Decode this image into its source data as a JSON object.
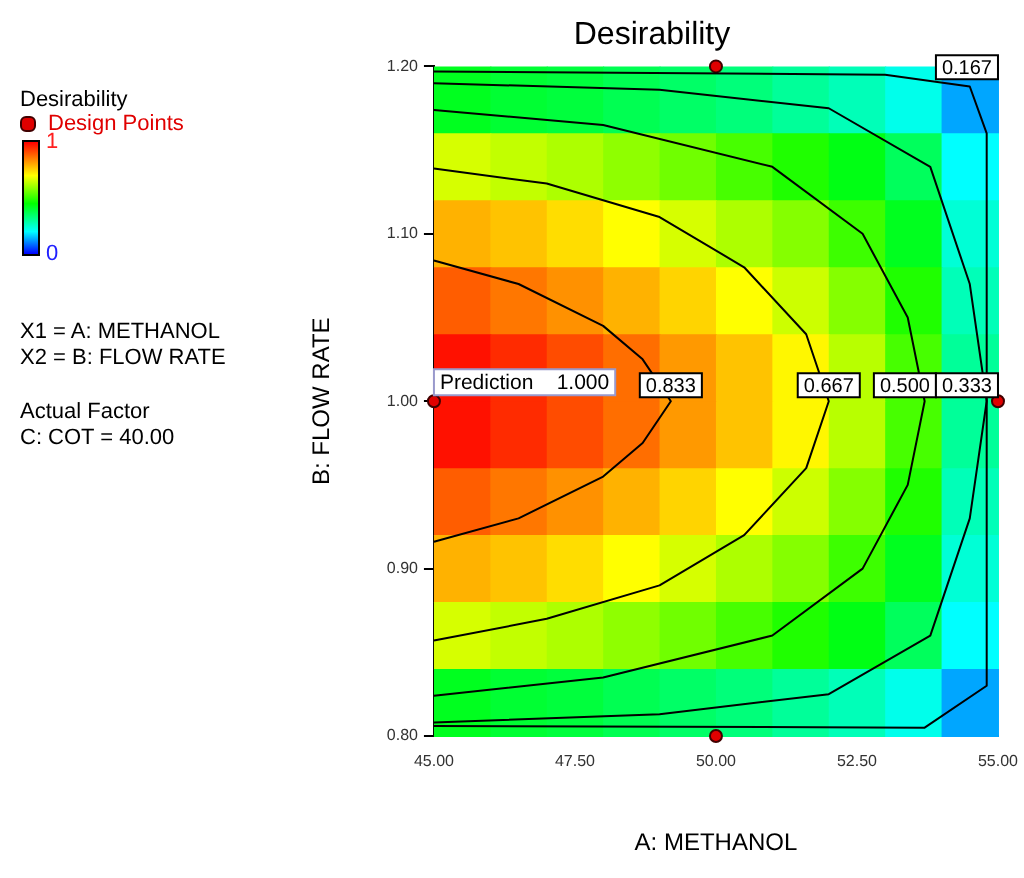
{
  "chart_data": {
    "type": "heatmap",
    "title": "Desirability",
    "xlabel": "A: METHANOL",
    "ylabel": "B: FLOW RATE",
    "legend_title": "Desirability",
    "legend": "left",
    "xlim": [
      45,
      55
    ],
    "xticks": [
      {
        "value": 45,
        "label": "45.00"
      },
      {
        "value": 47.5,
        "label": "47.50"
      },
      {
        "value": 50,
        "label": "50.00"
      },
      {
        "value": 52.5,
        "label": "52.50"
      },
      {
        "value": 55,
        "label": "55.00"
      }
    ],
    "ylim": [
      0.8,
      1.2
    ],
    "yticks": [
      {
        "value": 0.8,
        "label": "0.80"
      },
      {
        "value": 0.9,
        "label": "0.90"
      },
      {
        "value": 1.0,
        "label": "1.00"
      },
      {
        "value": 1.1,
        "label": "1.10"
      },
      {
        "value": 1.2,
        "label": "1.20"
      }
    ],
    "clim": [
      0,
      1
    ],
    "cticks": [
      0,
      1
    ],
    "cells": [
      [
        0.42,
        0.4,
        0.39,
        0.37,
        0.35,
        0.33,
        0.3,
        0.27,
        0.22,
        0.13
      ],
      [
        0.66,
        0.64,
        0.62,
        0.59,
        0.56,
        0.52,
        0.48,
        0.43,
        0.36,
        0.2
      ],
      [
        0.79,
        0.77,
        0.74,
        0.7,
        0.66,
        0.62,
        0.58,
        0.51,
        0.42,
        0.24
      ],
      [
        0.89,
        0.86,
        0.83,
        0.79,
        0.75,
        0.7,
        0.65,
        0.58,
        0.48,
        0.27
      ],
      [
        0.98,
        0.95,
        0.91,
        0.87,
        0.82,
        0.77,
        0.71,
        0.63,
        0.52,
        0.3
      ],
      [
        0.98,
        0.95,
        0.91,
        0.87,
        0.82,
        0.77,
        0.71,
        0.63,
        0.52,
        0.3
      ],
      [
        0.89,
        0.86,
        0.83,
        0.79,
        0.75,
        0.7,
        0.65,
        0.58,
        0.48,
        0.27
      ],
      [
        0.79,
        0.77,
        0.74,
        0.7,
        0.66,
        0.62,
        0.58,
        0.51,
        0.42,
        0.24
      ],
      [
        0.66,
        0.64,
        0.62,
        0.59,
        0.56,
        0.52,
        0.48,
        0.43,
        0.36,
        0.2
      ],
      [
        0.42,
        0.4,
        0.39,
        0.37,
        0.35,
        0.33,
        0.3,
        0.27,
        0.22,
        0.13
      ]
    ],
    "series": [
      {
        "type": "line",
        "marker": "none",
        "color": "#000000",
        "x": [
          45,
          46.5,
          48,
          48.7,
          49.2,
          48.7,
          48,
          46.5,
          45
        ],
        "values": [
          0.916,
          0.93,
          0.955,
          0.975,
          1.0,
          1.025,
          1.045,
          1.07,
          1.084
        ]
      },
      {
        "type": "line",
        "marker": "none",
        "color": "#000000",
        "x": [
          45,
          47,
          49,
          50.5,
          51.6,
          52,
          51.6,
          50.5,
          49,
          47,
          45
        ],
        "values": [
          0.857,
          0.87,
          0.89,
          0.92,
          0.96,
          1.0,
          1.04,
          1.08,
          1.11,
          1.13,
          1.139
        ]
      },
      {
        "type": "line",
        "marker": "none",
        "color": "#000000",
        "x": [
          45,
          48,
          51,
          52.6,
          53.4,
          53.7,
          53.4,
          52.6,
          51,
          48,
          45
        ],
        "values": [
          0.824,
          0.835,
          0.86,
          0.9,
          0.95,
          1.0,
          1.05,
          1.1,
          1.14,
          1.165,
          1.174
        ]
      },
      {
        "type": "line",
        "marker": "none",
        "color": "#000000",
        "x": [
          45,
          49,
          52,
          53.8,
          54.5,
          54.8,
          54.5,
          53.8,
          52,
          49,
          45
        ],
        "values": [
          0.808,
          0.813,
          0.825,
          0.86,
          0.93,
          1.0,
          1.07,
          1.14,
          1.175,
          1.186,
          1.19
        ]
      },
      {
        "type": "line",
        "marker": "none",
        "color": "#000000",
        "x": [
          45,
          53,
          54.5,
          54.8,
          54.8,
          53.7,
          45
        ],
        "values": [
          1.197,
          1.195,
          1.188,
          1.16,
          0.83,
          0.805,
          0.806
        ]
      },
      {
        "type": "scatter",
        "name": "Design Points",
        "color": "#e00000",
        "x": [
          45,
          50,
          50,
          55
        ],
        "values": [
          1.0,
          1.2,
          0.8,
          1.0
        ]
      }
    ],
    "marker": "circle",
    "annotations": [
      {
        "text": "Prediction    1.000",
        "x": 45,
        "y": 1.0
      },
      {
        "text": "0.833",
        "x": 49.2,
        "y": 1.0
      },
      {
        "text": "0.667",
        "x": 52,
        "y": 1.0
      },
      {
        "text": "0.500",
        "x": 53.7,
        "y": 1.0
      },
      {
        "text": "0.333",
        "x": 54.8,
        "y": 1.0
      },
      {
        "text": "0.167",
        "x": 54.6,
        "y": 1.19
      },
      "X1 = A: METHANOL",
      "X2 = B: FLOW RATE",
      "Actual Factor",
      "C: COT = 40.00"
    ]
  }
}
